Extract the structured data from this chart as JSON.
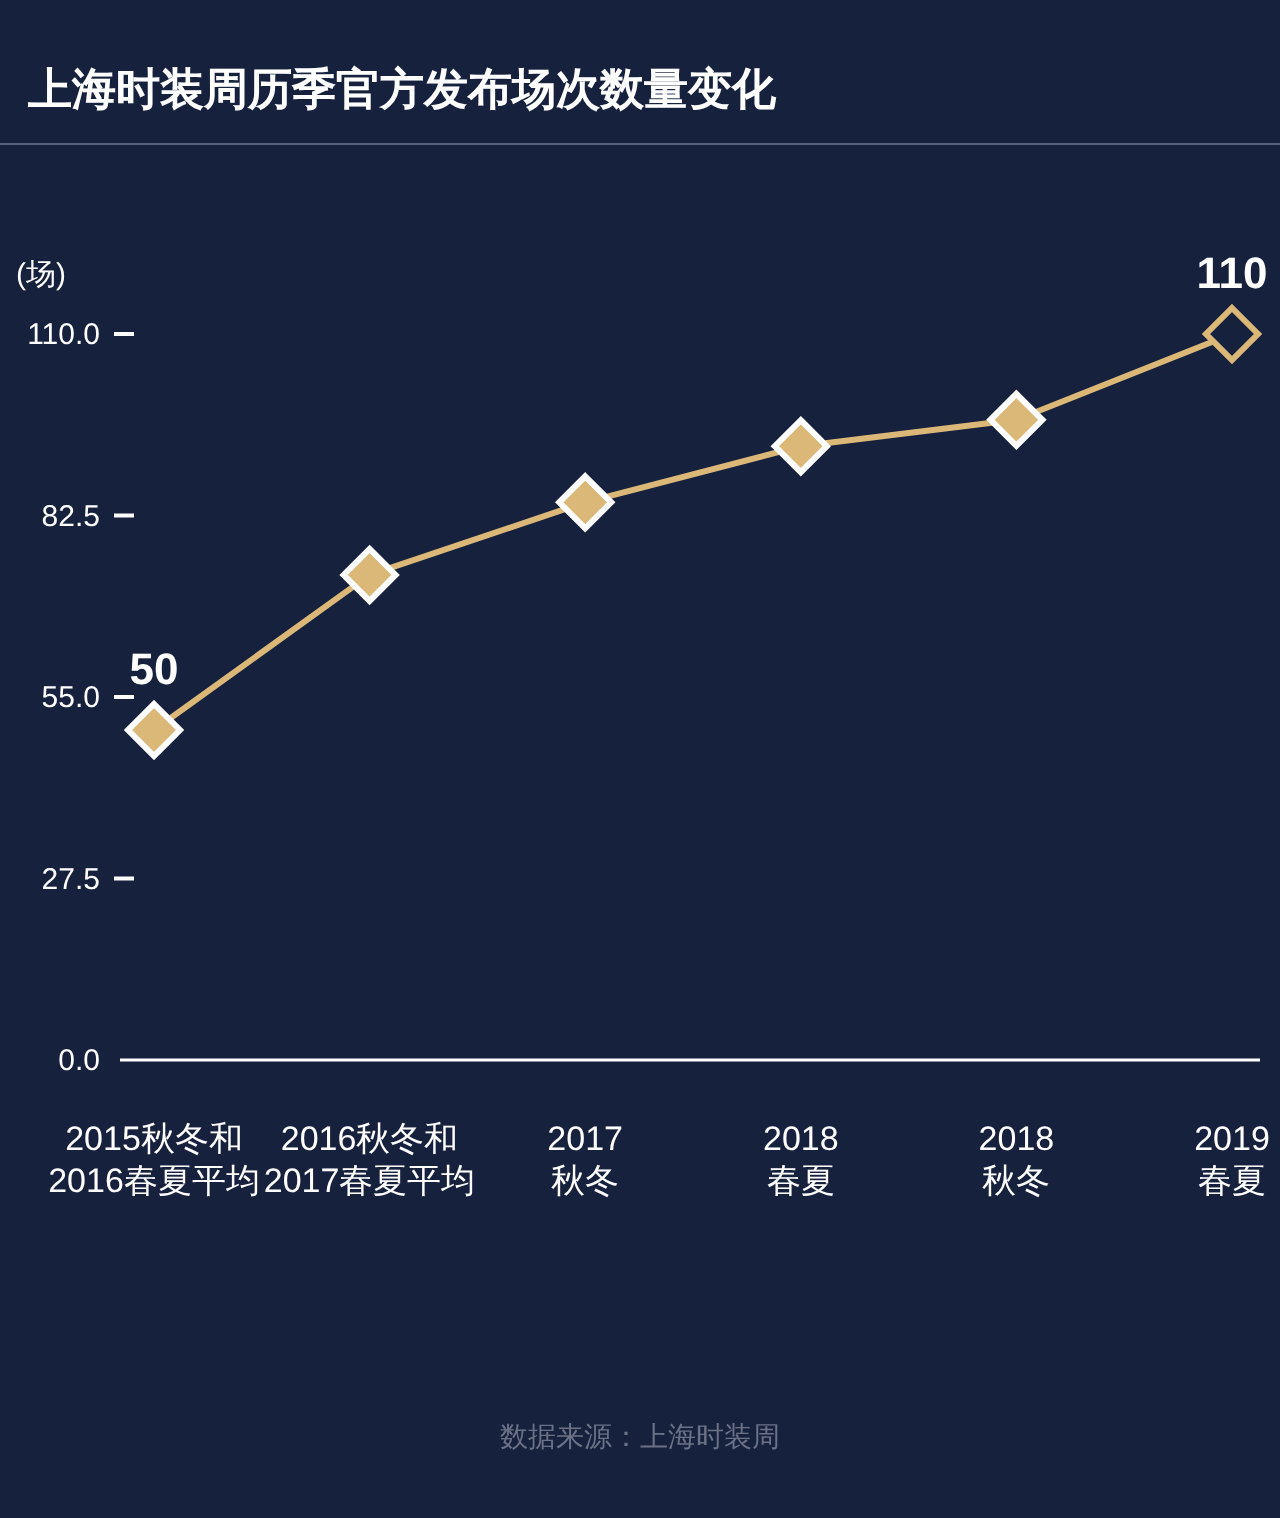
{
  "chart_data": {
    "type": "line",
    "title": "上海时装周历季官方发布场次数量变化",
    "ylabel": "(场)",
    "categories": [
      "2015秋冬和\n2016春夏平均",
      "2016秋冬和\n2017春夏平均",
      "2017\n秋冬",
      "2018\n春夏",
      "2018\n秋冬",
      "2019\n春夏"
    ],
    "series": [
      {
        "color": "#dcb878",
        "values": [
          50,
          73.5,
          84.5,
          93,
          97,
          110
        ],
        "value_labels": [
          "50",
          null,
          null,
          null,
          null,
          "110"
        ],
        "colors": [
          "#dcb878",
          "#dcb878",
          "#dcb878",
          "#dcb878",
          "#dcb878",
          "#16213d"
        ]
      }
    ],
    "ylim": [
      0,
      110
    ],
    "yticks": [
      {
        "value": 0,
        "label": "0.0"
      },
      27.5,
      {
        "value": 55,
        "label": "55.0"
      },
      82.5,
      {
        "value": 110,
        "label": "110.0"
      }
    ],
    "grid": false,
    "marker": "diamond",
    "line_style": "solid",
    "annotations": [
      "数据来源：上海时装周"
    ]
  }
}
